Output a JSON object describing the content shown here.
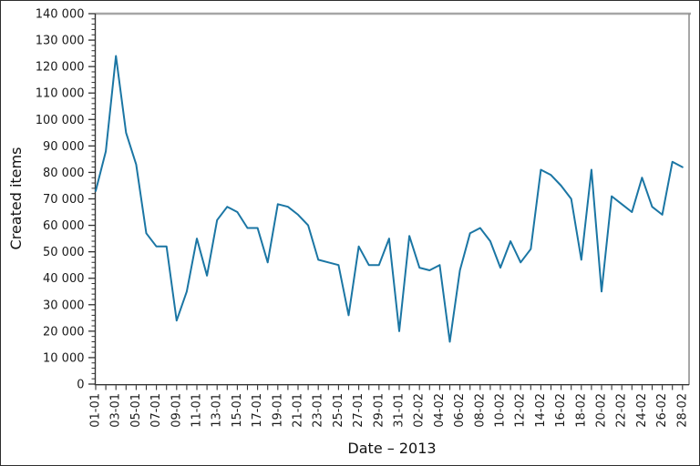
{
  "figure": {
    "ylabel": "Created items",
    "xlabel": "Date – 2013"
  },
  "chart_data": {
    "type": "line",
    "title": "",
    "xlabel": "Date – 2013",
    "ylabel": "Created items",
    "ylim": [
      0,
      140000
    ],
    "y_major_step": 10000,
    "y_minor_step": 2000,
    "x_label_every": 2,
    "grid": "off",
    "legend": "none",
    "line_color": "#1b76a4",
    "spine_top_color": "#a6a6a6",
    "spine_right_color": "#8a8a8a",
    "spine_axis_color": "#333333",
    "y_tick_labels": [
      "0",
      "10 000",
      "20 000",
      "30 000",
      "40 000",
      "50 000",
      "60 000",
      "70 000",
      "80 000",
      "90 000",
      "100 000",
      "110 000",
      "120 000",
      "130 000",
      "140 000"
    ],
    "x_tick_labels": [
      "01-01",
      "03-01",
      "05-01",
      "07-01",
      "09-01",
      "11-01",
      "13-01",
      "15-01",
      "17-01",
      "19-01",
      "21-01",
      "23-01",
      "25-01",
      "27-01",
      "29-01",
      "31-01",
      "02-02",
      "04-02",
      "06-02",
      "08-02",
      "10-02",
      "12-02",
      "14-02",
      "16-02",
      "18-02",
      "20-02",
      "22-02",
      "24-02",
      "26-02",
      "28-02"
    ],
    "categories": [
      "01-01",
      "02-01",
      "03-01",
      "04-01",
      "05-01",
      "06-01",
      "07-01",
      "08-01",
      "09-01",
      "10-01",
      "11-01",
      "12-01",
      "13-01",
      "14-01",
      "15-01",
      "16-01",
      "17-01",
      "18-01",
      "19-01",
      "20-01",
      "21-01",
      "22-01",
      "23-01",
      "24-01",
      "25-01",
      "26-01",
      "27-01",
      "28-01",
      "29-01",
      "30-01",
      "31-01",
      "01-02",
      "02-02",
      "03-02",
      "04-02",
      "05-02",
      "06-02",
      "07-02",
      "08-02",
      "09-02",
      "10-02",
      "11-02",
      "12-02",
      "13-02",
      "14-02",
      "15-02",
      "16-02",
      "17-02",
      "18-02",
      "19-02",
      "20-02",
      "21-02",
      "22-02",
      "23-02",
      "24-02",
      "25-02",
      "26-02",
      "27-02",
      "28-02"
    ],
    "values": [
      73000,
      88000,
      124000,
      95000,
      83000,
      57000,
      52000,
      52000,
      24000,
      35000,
      55000,
      41000,
      62000,
      67000,
      65000,
      59000,
      59000,
      46000,
      68000,
      67000,
      64000,
      60000,
      47000,
      46000,
      45000,
      26000,
      52000,
      45000,
      45000,
      55000,
      20000,
      56000,
      44000,
      43000,
      45000,
      16000,
      43000,
      57000,
      59000,
      54000,
      44000,
      54000,
      46000,
      51000,
      81000,
      79000,
      75000,
      70000,
      47000,
      81000,
      35000,
      71000,
      68000,
      65000,
      78000,
      67000,
      64000,
      84000,
      82000
    ]
  }
}
